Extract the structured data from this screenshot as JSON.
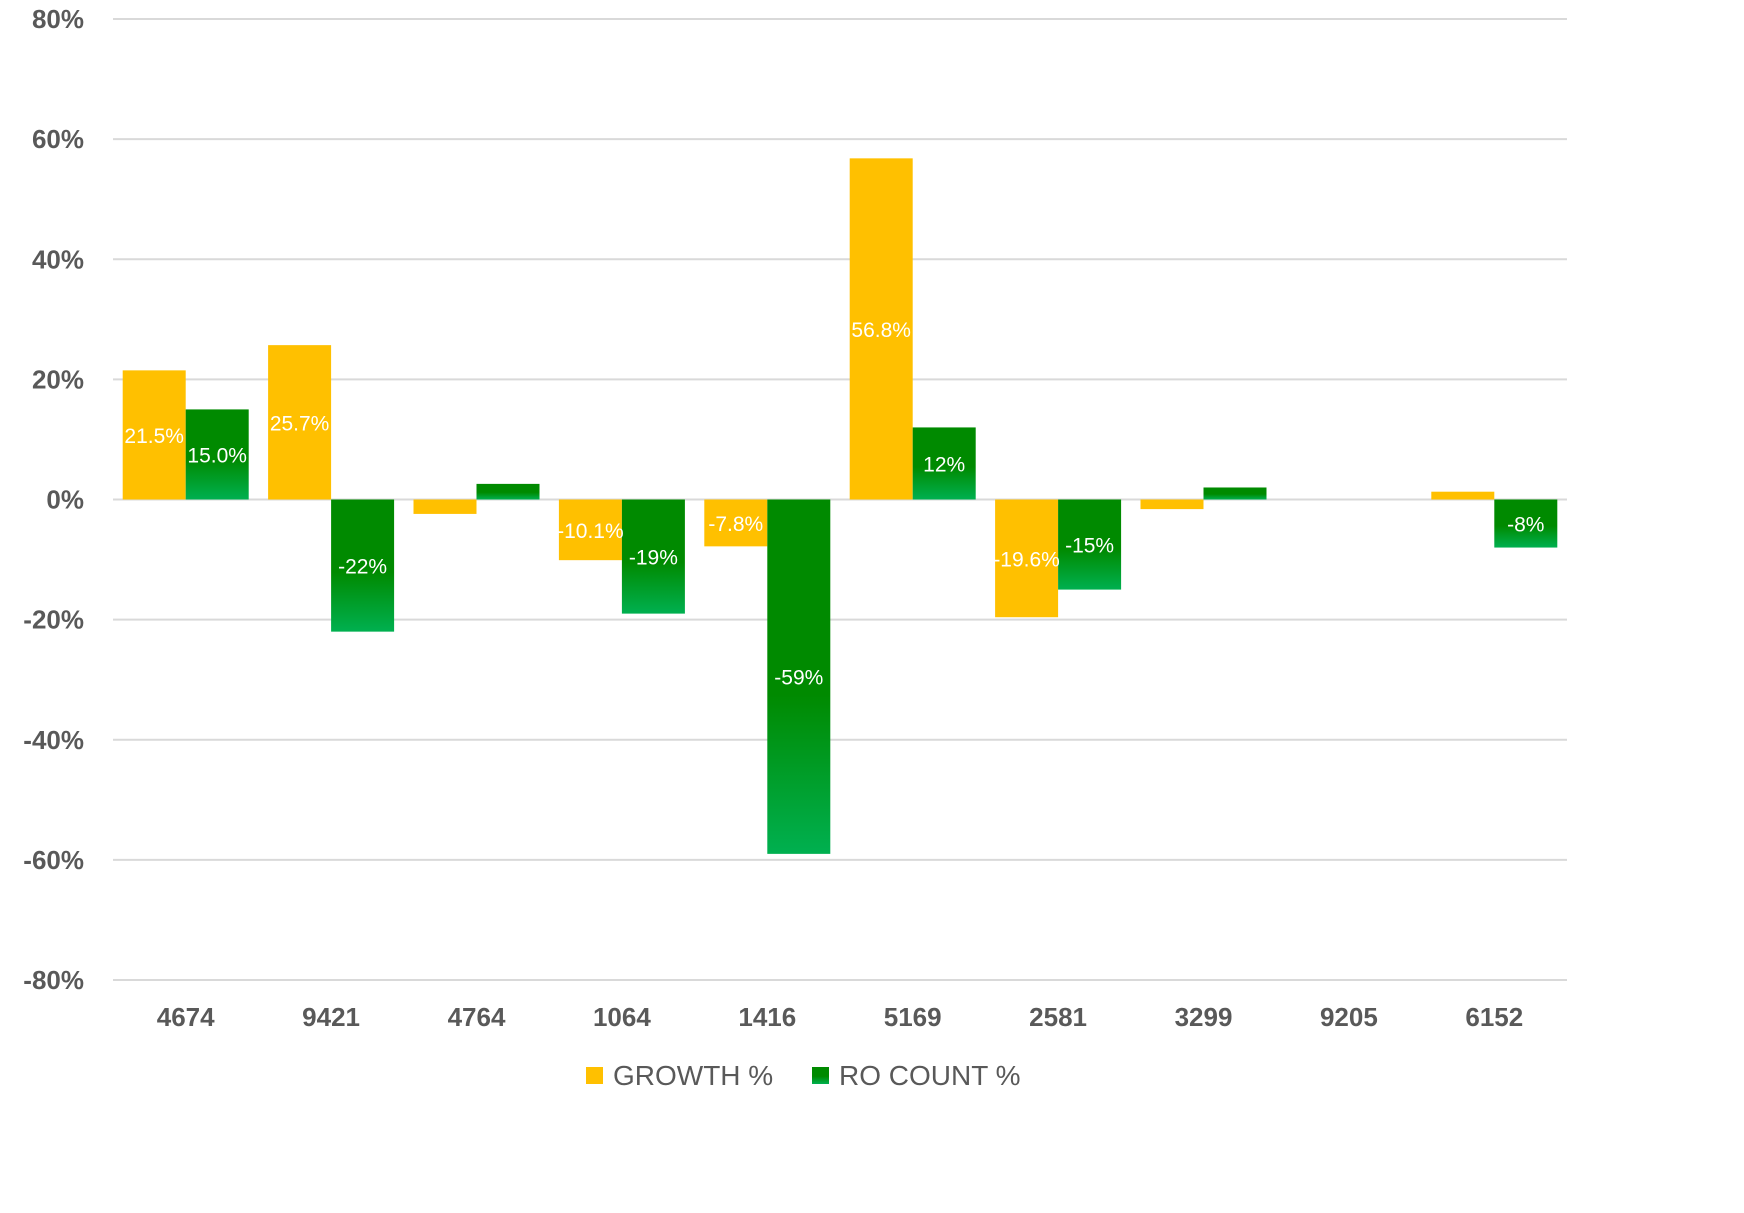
{
  "colors": {
    "growth": "#FFC000",
    "ro_count_top": "#008A00",
    "ro_count_bottom": "#00B050",
    "grid": "#D9D9D9",
    "tick_text": "#595959",
    "label_text": "#FFFFFF"
  },
  "chart_data": {
    "type": "bar",
    "title": "",
    "xlabel": "",
    "ylabel": "",
    "categories": [
      "4674",
      "9421",
      "4764",
      "1064",
      "1416",
      "5169",
      "2581",
      "3299",
      "9205",
      "6152"
    ],
    "ylim": [
      -80,
      80
    ],
    "yticks": [
      80,
      60,
      40,
      20,
      0,
      -20,
      -40,
      -60,
      -80
    ],
    "ytick_labels": [
      "80%",
      "60%",
      "40%",
      "20%",
      "0%",
      "-20%",
      "-40%",
      "-60%",
      "-80%"
    ],
    "grid": true,
    "legend_position": "bottom",
    "series": [
      {
        "name": "GROWTH %",
        "values": [
          21.5,
          25.7,
          -2.4,
          -10.1,
          -7.8,
          56.8,
          -19.6,
          -1.6,
          0,
          1.3
        ],
        "labels": [
          "21.5%",
          "25.7%",
          "",
          "-10.1%",
          "-7.8%",
          "56.8%",
          "-19.6%",
          "",
          "",
          ""
        ]
      },
      {
        "name": "RO COUNT %",
        "values": [
          15.0,
          -22,
          2.6,
          -19,
          -59,
          12,
          -15,
          2.0,
          0,
          -8
        ],
        "labels": [
          "15.0%",
          "-22%",
          "",
          "-19%",
          "-59%",
          "12%",
          "-15%",
          "",
          "",
          "-8%"
        ]
      }
    ]
  }
}
